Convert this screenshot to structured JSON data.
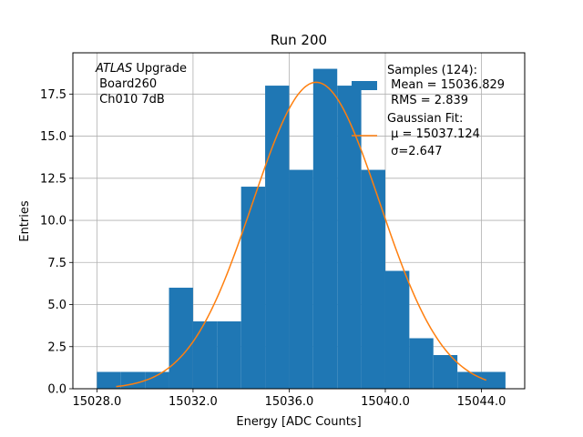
{
  "chart_data": {
    "type": "bar",
    "title": "Run 200",
    "xlabel": "Energy [ADC Counts]",
    "ylabel": "Entries",
    "xlim": [
      15027.0,
      15045.8
    ],
    "ylim": [
      0,
      19.95
    ],
    "grid": true,
    "x_ticks": [
      15028,
      15032,
      15036,
      15040,
      15044
    ],
    "x_tick_labels": [
      "15028.0",
      "15032.0",
      "15036.0",
      "15040.0",
      "15044.0"
    ],
    "y_ticks": [
      0,
      2.5,
      5,
      7.5,
      10,
      12.5,
      15,
      17.5
    ],
    "y_tick_labels": [
      "0.0",
      "2.5",
      "5.0",
      "7.5",
      "10.0",
      "12.5",
      "15.0",
      "17.5"
    ],
    "histogram": {
      "color": "#1f77b4",
      "bin_edges": [
        15028.0,
        15029.0,
        15030.0,
        15031.0,
        15032.0,
        15033.0,
        15034.0,
        15035.0,
        15036.0,
        15037.0,
        15038.0,
        15039.0,
        15040.0,
        15041.0,
        15042.0,
        15043.0,
        15044.0,
        15045.0
      ],
      "counts": [
        1,
        1,
        1,
        6,
        4,
        4,
        12,
        18,
        13,
        19,
        18,
        13,
        7,
        3,
        2,
        1,
        1
      ]
    },
    "gaussian_fit": {
      "color": "#ff7f0e",
      "mu": 15037.124,
      "sigma": 2.647,
      "amplitude": 18.2,
      "x_range": [
        15028.8,
        15044.2
      ]
    },
    "annotation": {
      "line1_italic": "ATLAS",
      "line1_rest": " Upgrade",
      "line2": " Board260",
      "line3": " Ch010 7dB"
    },
    "legend": {
      "placement": "top-right",
      "samples_title": "Samples (124):",
      "samples_mean": " Mean = 15036.829",
      "samples_rms": " RMS = 2.839",
      "fit_title": "Gaussian Fit:",
      "fit_mu": " μ = 15037.124",
      "fit_sigma": " σ=2.647"
    }
  }
}
